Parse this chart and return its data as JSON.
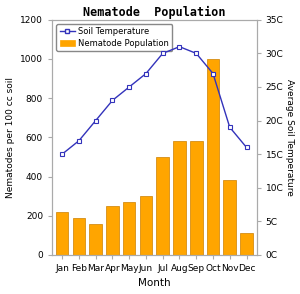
{
  "months": [
    "Jan",
    "Feb",
    "Mar",
    "Apr",
    "May",
    "Jun",
    "Jul",
    "Aug",
    "Sep",
    "Oct",
    "Nov",
    "Dec"
  ],
  "nematode_population": [
    220,
    190,
    160,
    250,
    270,
    300,
    500,
    580,
    580,
    1000,
    380,
    110
  ],
  "soil_temp_actual": [
    15,
    17,
    20,
    23,
    25,
    27,
    30,
    31,
    30,
    27,
    19,
    16
  ],
  "left_yticks": [
    0,
    200,
    400,
    600,
    800,
    1000,
    1200
  ],
  "right_yticks": [
    0,
    5,
    10,
    15,
    20,
    25,
    30,
    35
  ],
  "right_yticklabels": [
    "0C",
    "5C",
    "10C",
    "15C",
    "20C",
    "25C",
    "30C",
    "35C"
  ],
  "left_ylim": [
    0,
    1200
  ],
  "right_ylim": [
    0,
    35
  ],
  "bar_color": "#FFA500",
  "bar_edge_color": "#CC8000",
  "line_color": "#3333BB",
  "title": "Nematode  Population",
  "xlabel": "Month",
  "ylabel_left": "Nematodes per 100 cc soil",
  "ylabel_right": "Average Soil Temperature",
  "bg_color": "#FFFFFF",
  "plot_bg_color": "#FFFFFF",
  "legend_labels": [
    "Soil Temperature",
    "Nematode Population"
  ]
}
